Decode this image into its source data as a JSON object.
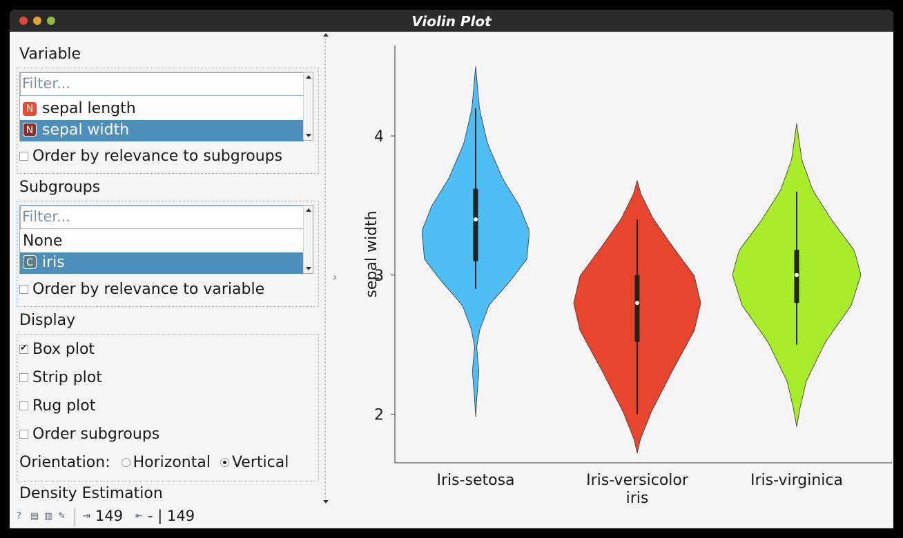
{
  "window": {
    "title": "Violin Plot"
  },
  "variable": {
    "section_title": "Variable",
    "filter_placeholder": "Filter...",
    "items": [
      {
        "badge": "N",
        "label": "sepal length",
        "selected": false
      },
      {
        "badge": "N",
        "label": "sepal width",
        "selected": true
      }
    ],
    "order_label": "Order by relevance to subgroups",
    "order_checked": false
  },
  "subgroups": {
    "section_title": "Subgroups",
    "filter_placeholder": "Filter...",
    "items": [
      {
        "badge": "",
        "label": "None",
        "selected": false
      },
      {
        "badge": "C",
        "label": "iris",
        "selected": true
      }
    ],
    "order_label": "Order by relevance to variable",
    "order_checked": false
  },
  "display": {
    "section_title": "Display",
    "box_plot": "Box plot",
    "box_plot_checked": true,
    "strip_plot": "Strip plot",
    "strip_plot_checked": false,
    "rug_plot": "Rug plot",
    "rug_plot_checked": false,
    "order_subgroups": "Order subgroups",
    "order_subgroups_checked": false,
    "orientation_label": "Orientation:",
    "horizontal": "Horizontal",
    "vertical": "Vertical",
    "orientation_selected": "Vertical"
  },
  "density": {
    "section_title": "Density Estimation"
  },
  "status": {
    "input_count": "149",
    "output_text": "- | 149",
    "icons": [
      "help-icon",
      "save-icon",
      "report-icon",
      "visual-icon",
      "input-icon",
      "output-icon"
    ]
  },
  "chart_data": {
    "type": "violin",
    "ylabel": "sepal width",
    "xlabel": "iris",
    "yticks": [
      2,
      3,
      4
    ],
    "ylim": [
      1.65,
      4.65
    ],
    "categories": [
      "Iris-setosa",
      "Iris-versicolor",
      "Iris-virginica"
    ],
    "colors": [
      "#4ebef5",
      "#e8452f",
      "#a8ec2a"
    ],
    "box_plot": [
      {
        "category": "Iris-setosa",
        "min": 2.9,
        "q1": 3.1,
        "median": 3.4,
        "q3": 3.62,
        "max": 4.2
      },
      {
        "category": "Iris-versicolor",
        "min": 2.0,
        "q1": 2.52,
        "median": 2.8,
        "q3": 3.0,
        "max": 3.4
      },
      {
        "category": "Iris-virginica",
        "min": 2.5,
        "q1": 2.8,
        "median": 3.0,
        "q3": 3.18,
        "max": 3.6
      }
    ],
    "density_range": [
      {
        "category": "Iris-setosa",
        "low": 1.98,
        "high": 4.5
      },
      {
        "category": "Iris-versicolor",
        "low": 1.72,
        "high": 3.68
      },
      {
        "category": "Iris-virginica",
        "low": 1.91,
        "high": 4.09
      }
    ]
  }
}
